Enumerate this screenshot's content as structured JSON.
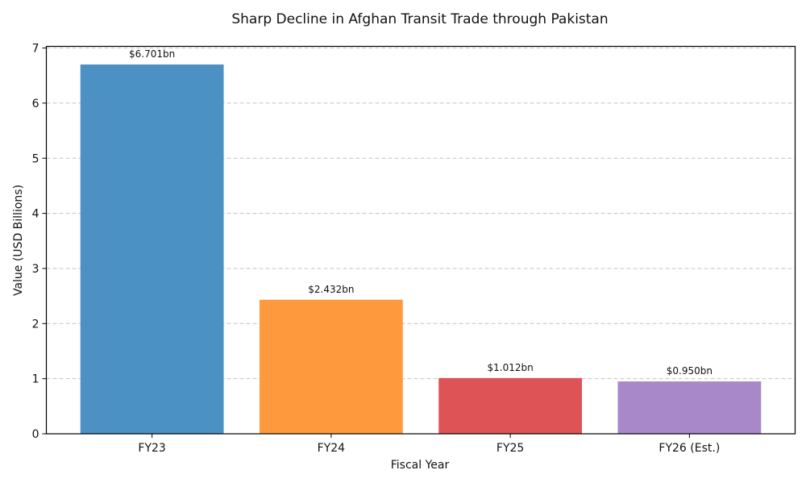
{
  "chart_data": {
    "type": "bar",
    "title": "Sharp Decline in Afghan Transit Trade through Pakistan",
    "xlabel": "Fiscal Year",
    "ylabel": "Value (USD Billions)",
    "categories": [
      "FY23",
      "FY24",
      "FY25",
      "FY26 (Est.)"
    ],
    "values": [
      6.701,
      2.432,
      1.012,
      0.95
    ],
    "data_labels": [
      "$6.701bn",
      "$2.432bn",
      "$1.012bn",
      "$0.950bn"
    ],
    "colors": [
      "#4c91c3",
      "#ff993e",
      "#de5456",
      "#a988c9"
    ],
    "ylim": [
      0,
      7.03
    ],
    "yticks": [
      "0",
      "1",
      "2",
      "3",
      "4",
      "5",
      "6",
      "7"
    ],
    "grid": "y-dashed"
  }
}
